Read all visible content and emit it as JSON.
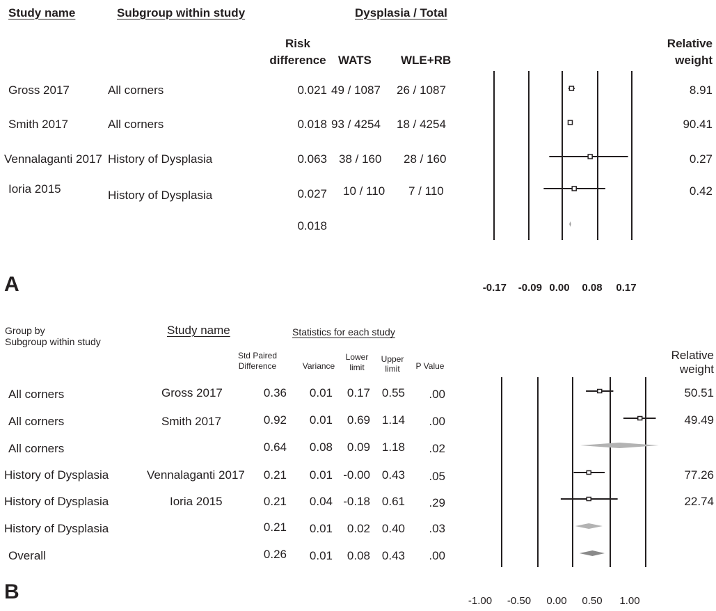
{
  "panel_a": {
    "label": "A",
    "headers": {
      "study_name": "Study name",
      "subgroup": "Subgroup within study",
      "dysplasia_total": "Dysplasia / Total",
      "risk_difference_line1": "Risk",
      "risk_difference_line2": "difference",
      "wats": "WATS",
      "wle_rb": "WLE+RB",
      "relative_weight_line1": "Relative",
      "relative_weight_line2": "weight"
    },
    "rows": [
      {
        "study": "Gross 2017",
        "subgroup": "All corners",
        "rd": "0.021",
        "wats": "49 / 1087",
        "wle": "26 / 1087",
        "weight": "8.91"
      },
      {
        "study": "Smith 2017",
        "subgroup": "All corners",
        "rd": "0.018",
        "wats": "93 / 4254",
        "wle": "18 / 4254",
        "weight": "90.41"
      },
      {
        "study": "Vennalaganti 2017",
        "subgroup": "History of Dysplasia",
        "rd": "0.063",
        "wats": "38 / 160",
        "wle": "28 / 160",
        "weight": "0.27"
      },
      {
        "study": "Ioria 2015",
        "subgroup": "History of Dysplasia",
        "rd": "0.027",
        "wats": "10 / 110",
        "wle": "7 / 110",
        "weight": "0.42"
      }
    ],
    "overall_rd": "0.018",
    "axis_ticks": [
      "-0.17",
      "-0.09",
      "0.00",
      "0.08",
      "0.17"
    ]
  },
  "panel_b": {
    "label": "B",
    "headers": {
      "group_by": "Group by",
      "subgroup": "Subgroup within study",
      "study_name": "Study name",
      "statistics": "Statistics for each study",
      "std_paired_line1": "Std Paired",
      "std_paired_line2": "Difference",
      "variance": "Variance",
      "lower_line1": "Lower",
      "lower_line2": "limit",
      "upper_line1": "Upper",
      "upper_line2": "limit",
      "p_value": "P Value",
      "relative_weight_line1": "Relative",
      "relative_weight_line2": "weight"
    },
    "rows": [
      {
        "group": "All corners",
        "study": "Gross 2017",
        "spd": "0.36",
        "var": "0.01",
        "lower": "0.17",
        "upper": "0.55",
        "p": ".00",
        "weight": "50.51"
      },
      {
        "group": "All corners",
        "study": "Smith 2017",
        "spd": "0.92",
        "var": "0.01",
        "lower": "0.69",
        "upper": "1.14",
        "p": ".00",
        "weight": "49.49"
      },
      {
        "group": "All corners",
        "study": "",
        "spd": "0.64",
        "var": "0.08",
        "lower": "0.09",
        "upper": "1.18",
        "p": ".02",
        "weight": ""
      },
      {
        "group": "History of Dysplasia",
        "study": "Vennalaganti 2017",
        "spd": "0.21",
        "var": "0.01",
        "lower": "-0.00",
        "upper": "0.43",
        "p": ".05",
        "weight": "77.26"
      },
      {
        "group": "History of Dysplasia",
        "study": "Ioria 2015",
        "spd": "0.21",
        "var": "0.04",
        "lower": "-0.18",
        "upper": "0.61",
        "p": ".29",
        "weight": "22.74"
      },
      {
        "group": "History of Dysplasia",
        "study": "",
        "spd": "0.21",
        "var": "0.01",
        "lower": "0.02",
        "upper": "0.40",
        "p": ".03",
        "weight": ""
      },
      {
        "group": "Overall",
        "study": "",
        "spd": "0.26",
        "var": "0.01",
        "lower": "0.08",
        "upper": "0.43",
        "p": ".00",
        "weight": ""
      }
    ],
    "axis_ticks": [
      "-1.00",
      "-0.50",
      "0.00",
      "0.50",
      "1.00"
    ]
  },
  "chart_data": [
    {
      "type": "forest",
      "axis_ticks": [
        -0.17,
        -0.09,
        0.0,
        0.08,
        0.17
      ],
      "xlim": [
        -0.17,
        0.17
      ],
      "studies": [
        {
          "name": "Gross 2017",
          "estimate": 0.021,
          "lower": 0.014,
          "upper": 0.028,
          "weight": 8.91
        },
        {
          "name": "Smith 2017",
          "estimate": 0.018,
          "lower": 0.018,
          "upper": 0.018,
          "weight": 90.41
        },
        {
          "name": "Vennalaganti 2017",
          "estimate": 0.063,
          "lower": -0.035,
          "upper": 0.16,
          "weight": 0.27
        },
        {
          "name": "Ioria 2015",
          "estimate": 0.027,
          "lower": -0.05,
          "upper": 0.1,
          "weight": 0.42
        }
      ],
      "summary": {
        "estimate": 0.018,
        "lower": 0.016,
        "upper": 0.02
      }
    },
    {
      "type": "forest",
      "axis_ticks": [
        -1.0,
        -0.5,
        0.0,
        0.5,
        1.0
      ],
      "xlim": [
        -1.0,
        1.0
      ],
      "rows": [
        {
          "name": "Gross 2017",
          "estimate": 0.36,
          "lower": 0.17,
          "upper": 0.55,
          "weight": 50.51,
          "kind": "study"
        },
        {
          "name": "Smith 2017",
          "estimate": 0.92,
          "lower": 0.69,
          "upper": 1.14,
          "weight": 49.49,
          "kind": "study"
        },
        {
          "name": "All corners",
          "estimate": 0.64,
          "lower": 0.09,
          "upper": 1.18,
          "kind": "subgroup"
        },
        {
          "name": "Vennalaganti 2017",
          "estimate": 0.21,
          "lower": -0.0,
          "upper": 0.43,
          "weight": 77.26,
          "kind": "study"
        },
        {
          "name": "Ioria 2015",
          "estimate": 0.21,
          "lower": -0.18,
          "upper": 0.61,
          "weight": 22.74,
          "kind": "study"
        },
        {
          "name": "History of Dysplasia",
          "estimate": 0.21,
          "lower": 0.02,
          "upper": 0.4,
          "kind": "subgroup"
        },
        {
          "name": "Overall",
          "estimate": 0.26,
          "lower": 0.08,
          "upper": 0.43,
          "kind": "overall"
        }
      ],
      "colors": {
        "study": "#231f20",
        "subgroup": "#b3b3b3",
        "overall": "#8a8a8a"
      }
    }
  ]
}
